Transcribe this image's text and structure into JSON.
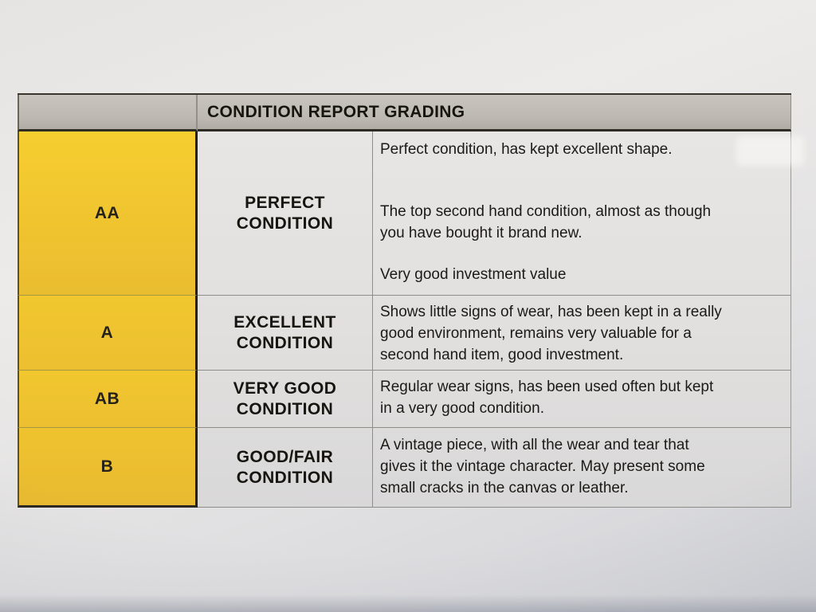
{
  "table": {
    "header": "CONDITION REPORT GRADING",
    "rows": [
      {
        "grade": "AA",
        "label": "PERFECT CONDITION",
        "paragraphs": [
          {
            "lines": [
              "Perfect condition, has kept excellent shape."
            ]
          },
          {
            "lines": [
              "The top second hand condition, almost as though",
              "you have bought it brand new."
            ]
          },
          {
            "lines": [
              "Very good investment value"
            ]
          }
        ]
      },
      {
        "grade": "A",
        "label": "EXCELLENT CONDITION",
        "paragraphs": [
          {
            "lines": [
              "Shows little signs of wear, has been kept in a really",
              "good environment, remains very valuable for a",
              "second hand item, good investment."
            ]
          }
        ]
      },
      {
        "grade": "AB",
        "label": "VERY GOOD CONDITION",
        "paragraphs": [
          {
            "lines": [
              "Regular wear signs, has been used often but kept",
              "in a very good condition."
            ]
          }
        ]
      },
      {
        "grade": "B",
        "label": "GOOD/FAIR CONDITION",
        "paragraphs": [
          {
            "lines": [
              "A vintage piece, with all the wear and tear that",
              "gives it the vintage character. May present some",
              "small cracks in the canvas or leather."
            ]
          }
        ]
      }
    ],
    "colors": {
      "grade_column_yellow": "#efc32f",
      "header_gray": "#c2beb7",
      "paper": "#e4e2e0",
      "text": "#1c1a17",
      "dark_border": "#2e2a24"
    }
  }
}
